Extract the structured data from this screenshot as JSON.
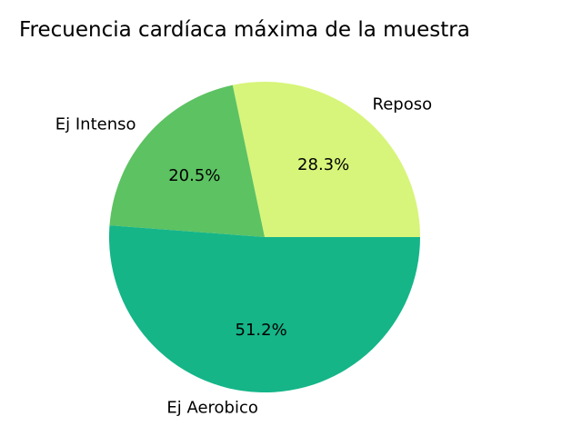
{
  "chart_data": {
    "type": "pie",
    "title": "Frecuencia cardíaca máxima de la muestra",
    "slices": [
      {
        "label": "Reposo",
        "value": 28.3,
        "pct_label": "28.3%",
        "color": "#d7f57a"
      },
      {
        "label": "Ej Intenso",
        "value": 20.5,
        "pct_label": "20.5%",
        "color": "#5dc262"
      },
      {
        "label": "Ej Aerobico",
        "value": 51.2,
        "pct_label": "51.2%",
        "color": "#15b588"
      }
    ],
    "start_angle_deg": 0,
    "direction": "counterclockwise",
    "legend": "none"
  }
}
